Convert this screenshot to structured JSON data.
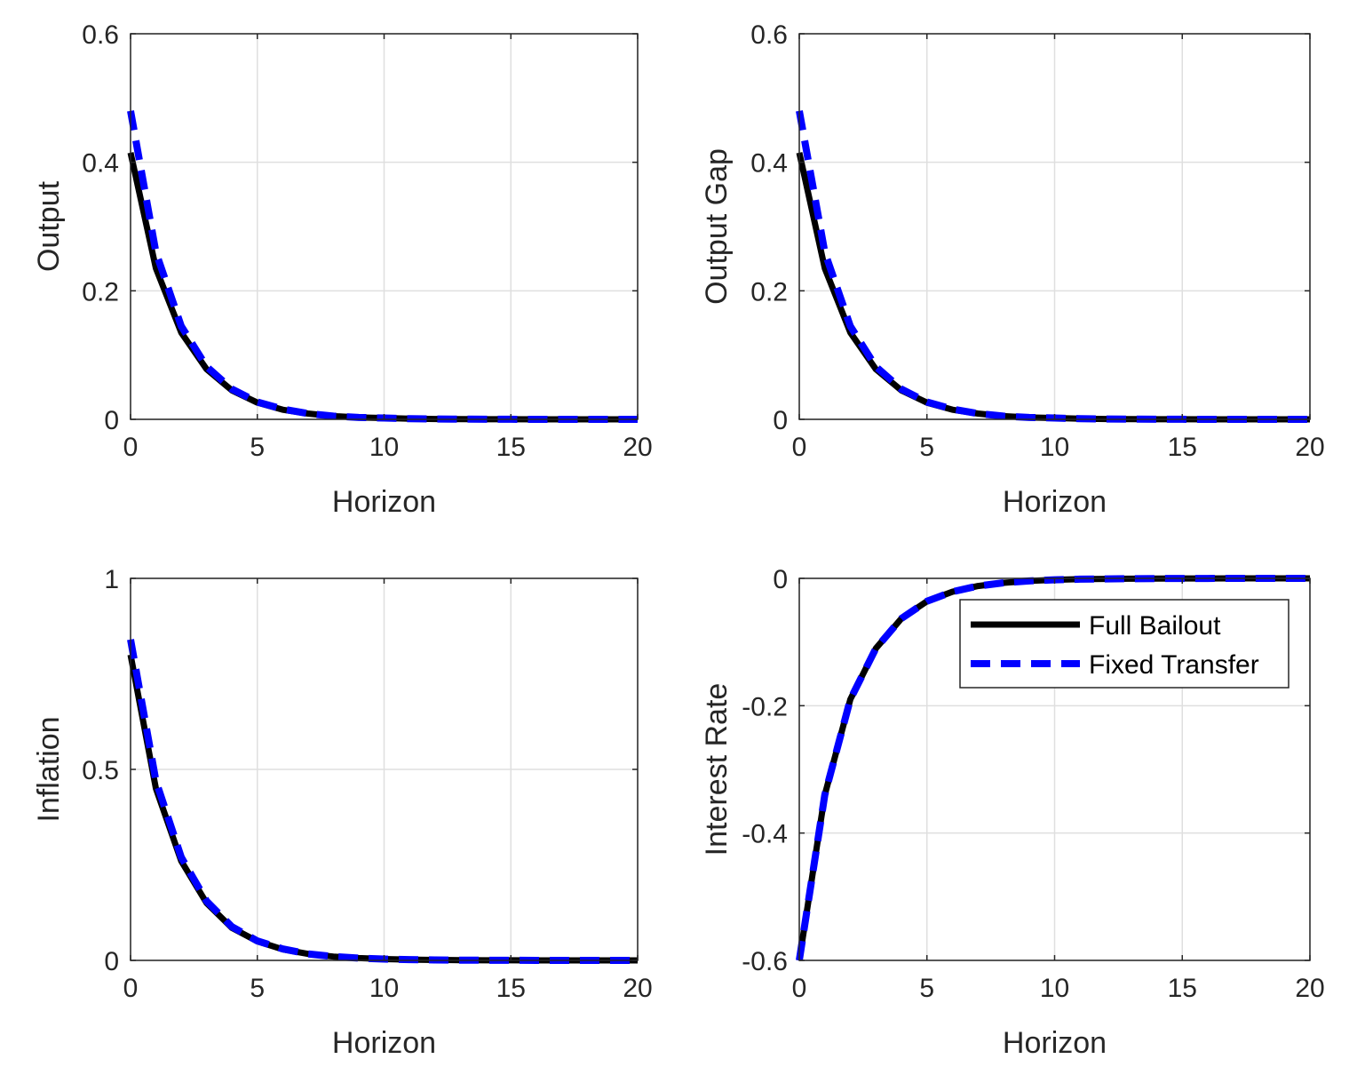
{
  "chart_data": [
    {
      "type": "line",
      "title": "",
      "xlabel": "Horizon",
      "ylabel": "Output",
      "xlim": [
        0,
        20
      ],
      "ylim": [
        0,
        0.6
      ],
      "xticks": [
        "0",
        "5",
        "10",
        "15",
        "20"
      ],
      "yticks": [
        "0",
        "0.2",
        "0.4",
        "0.6"
      ],
      "grid": true,
      "x": [
        0,
        1,
        2,
        3,
        4,
        5,
        6,
        7,
        8,
        9,
        10,
        11,
        12,
        13,
        14,
        15,
        16,
        17,
        18,
        19,
        20
      ],
      "series": [
        {
          "name": "Full Bailout",
          "color": "#000000",
          "style": "solid",
          "values": [
            0.415,
            0.235,
            0.135,
            0.078,
            0.045,
            0.026,
            0.015,
            0.009,
            0.005,
            0.003,
            0.002,
            0.001,
            0.0006,
            0.0003,
            0.0002,
            0.0001,
            0,
            0,
            0,
            0,
            0
          ]
        },
        {
          "name": "Fixed Transfer",
          "color": "#0000ff",
          "style": "dashed",
          "values": [
            0.48,
            0.26,
            0.145,
            0.082,
            0.047,
            0.027,
            0.016,
            0.009,
            0.005,
            0.003,
            0.002,
            0.001,
            0.0006,
            0.0003,
            0.0002,
            0.0001,
            0,
            0,
            0,
            0,
            0
          ]
        }
      ]
    },
    {
      "type": "line",
      "title": "",
      "xlabel": "Horizon",
      "ylabel": "Output Gap",
      "xlim": [
        0,
        20
      ],
      "ylim": [
        0,
        0.6
      ],
      "xticks": [
        "0",
        "5",
        "10",
        "15",
        "20"
      ],
      "yticks": [
        "0",
        "0.2",
        "0.4",
        "0.6"
      ],
      "grid": true,
      "x": [
        0,
        1,
        2,
        3,
        4,
        5,
        6,
        7,
        8,
        9,
        10,
        11,
        12,
        13,
        14,
        15,
        16,
        17,
        18,
        19,
        20
      ],
      "series": [
        {
          "name": "Full Bailout",
          "color": "#000000",
          "style": "solid",
          "values": [
            0.415,
            0.235,
            0.135,
            0.078,
            0.045,
            0.026,
            0.015,
            0.009,
            0.005,
            0.003,
            0.002,
            0.001,
            0.0006,
            0.0003,
            0.0002,
            0.0001,
            0,
            0,
            0,
            0,
            0
          ]
        },
        {
          "name": "Fixed Transfer",
          "color": "#0000ff",
          "style": "dashed",
          "values": [
            0.48,
            0.26,
            0.145,
            0.082,
            0.047,
            0.027,
            0.016,
            0.009,
            0.005,
            0.003,
            0.002,
            0.001,
            0.0006,
            0.0003,
            0.0002,
            0.0001,
            0,
            0,
            0,
            0,
            0
          ]
        }
      ]
    },
    {
      "type": "line",
      "title": "",
      "xlabel": "Horizon",
      "ylabel": "Inflation",
      "xlim": [
        0,
        20
      ],
      "ylim": [
        0,
        1
      ],
      "xticks": [
        "0",
        "5",
        "10",
        "15",
        "20"
      ],
      "yticks": [
        "0",
        "0.5",
        "1"
      ],
      "grid": true,
      "x": [
        0,
        1,
        2,
        3,
        4,
        5,
        6,
        7,
        8,
        9,
        10,
        11,
        12,
        13,
        14,
        15,
        16,
        17,
        18,
        19,
        20
      ],
      "series": [
        {
          "name": "Full Bailout",
          "color": "#000000",
          "style": "solid",
          "values": [
            0.8,
            0.45,
            0.26,
            0.15,
            0.085,
            0.05,
            0.029,
            0.017,
            0.01,
            0.006,
            0.0035,
            0.002,
            0.0012,
            0.0007,
            0.0004,
            0.0002,
            0.0001,
            0,
            0,
            0,
            0
          ]
        },
        {
          "name": "Fixed Transfer",
          "color": "#0000ff",
          "style": "dashed",
          "values": [
            0.84,
            0.47,
            0.27,
            0.155,
            0.088,
            0.051,
            0.03,
            0.017,
            0.01,
            0.006,
            0.0035,
            0.002,
            0.0012,
            0.0007,
            0.0004,
            0.0002,
            0.0001,
            0,
            0,
            0,
            0
          ]
        }
      ]
    },
    {
      "type": "line",
      "title": "",
      "xlabel": "Horizon",
      "ylabel": "Interest Rate",
      "xlim": [
        0,
        20
      ],
      "ylim": [
        -0.6,
        0
      ],
      "xticks": [
        "0",
        "5",
        "10",
        "15",
        "20"
      ],
      "yticks": [
        "-0.6",
        "-0.4",
        "-0.2",
        "0"
      ],
      "grid": true,
      "legend": "top-right",
      "x": [
        0,
        1,
        2,
        3,
        4,
        5,
        6,
        7,
        8,
        9,
        10,
        11,
        12,
        13,
        14,
        15,
        16,
        17,
        18,
        19,
        20
      ],
      "series": [
        {
          "name": "Full Bailout",
          "color": "#000000",
          "style": "solid",
          "values": [
            -0.6,
            -0.34,
            -0.19,
            -0.11,
            -0.063,
            -0.036,
            -0.021,
            -0.012,
            -0.007,
            -0.004,
            -0.0023,
            -0.0013,
            -0.0008,
            -0.0005,
            -0.0003,
            -0.0002,
            -0.0001,
            0,
            0,
            0,
            0
          ]
        },
        {
          "name": "Fixed Transfer",
          "color": "#0000ff",
          "style": "dashed",
          "values": [
            -0.6,
            -0.34,
            -0.19,
            -0.11,
            -0.063,
            -0.036,
            -0.021,
            -0.012,
            -0.007,
            -0.004,
            -0.0023,
            -0.0013,
            -0.0008,
            -0.0005,
            -0.0003,
            -0.0002,
            -0.0001,
            0,
            0,
            0,
            0
          ]
        }
      ]
    }
  ]
}
